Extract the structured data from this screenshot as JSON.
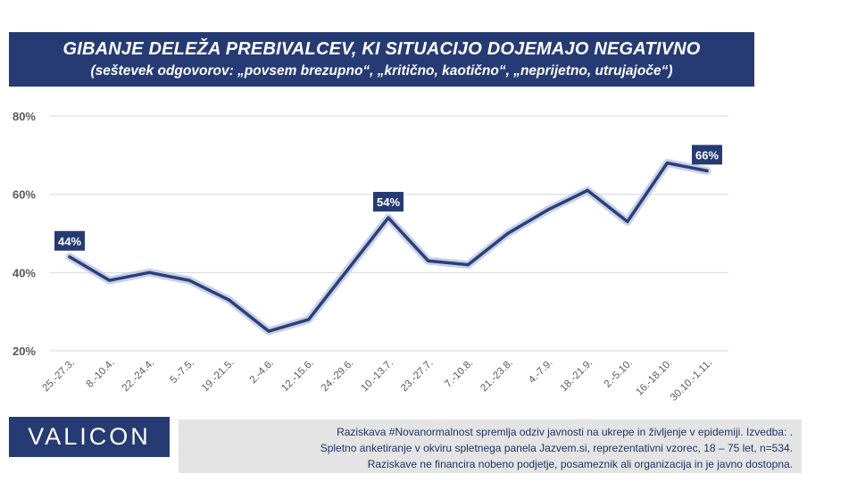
{
  "title": {
    "line1": "GIBANJE DELEŽA PREBIVALCEV, KI SITUACIJO DOJEMAJO NEGATIVNO",
    "line2": "(seštevek odgovorov: „povsem brezupno“, „kritično, kaotično“, „neprijetno, utrujajoče“)"
  },
  "logo": "VALICON",
  "footnote": {
    "line1": "Raziskava #Novanormalnost spremlja odziv javnosti na ukrepe in življenje v epidemiji. Izvedba:           .",
    "line2": "Spletno anketiranje v okviru spletnega panela Jazvem.si, reprezentativni vzorec, 18 – 75 let, n=534.",
    "line3": "Raziskave ne financira nobeno podjetje, posameznik ali organizacija in je javno dostopna."
  },
  "colors": {
    "brand": "#263b74",
    "line": "#2d3f73",
    "line_glow": "#b9c6ea",
    "grid": "#d9d9d9",
    "axis_text": "#595959",
    "label_bg": "#263b74"
  },
  "chart_data": {
    "type": "line",
    "categories": [
      "25.-27.3.",
      "8.-10.4.",
      "22.-24.4.",
      "5.-7.5.",
      "19.-21.5.",
      "2.-4.6.",
      "12.-15.6.",
      "24.-29.6.",
      "10.-13.7.",
      "23.-27.7.",
      "7.-10.8.",
      "21.-23.8.",
      "4.-7.9.",
      "18.-21.9.",
      "2.-5.10.",
      "16.-18.10.",
      "30.10.-1.11."
    ],
    "series": [
      {
        "values": [
          44,
          38,
          40,
          38,
          33,
          25,
          28,
          41,
          54,
          43,
          42,
          50,
          56,
          61,
          53,
          68,
          66
        ]
      }
    ],
    "y_ticks": [
      "20%",
      "40%",
      "60%",
      "80%"
    ],
    "ylim": [
      20,
      80
    ],
    "grid": true,
    "data_labels": [
      {
        "index": 0,
        "text": "44%"
      },
      {
        "index": 8,
        "text": "54%"
      },
      {
        "index": 16,
        "text": "66%"
      }
    ]
  }
}
